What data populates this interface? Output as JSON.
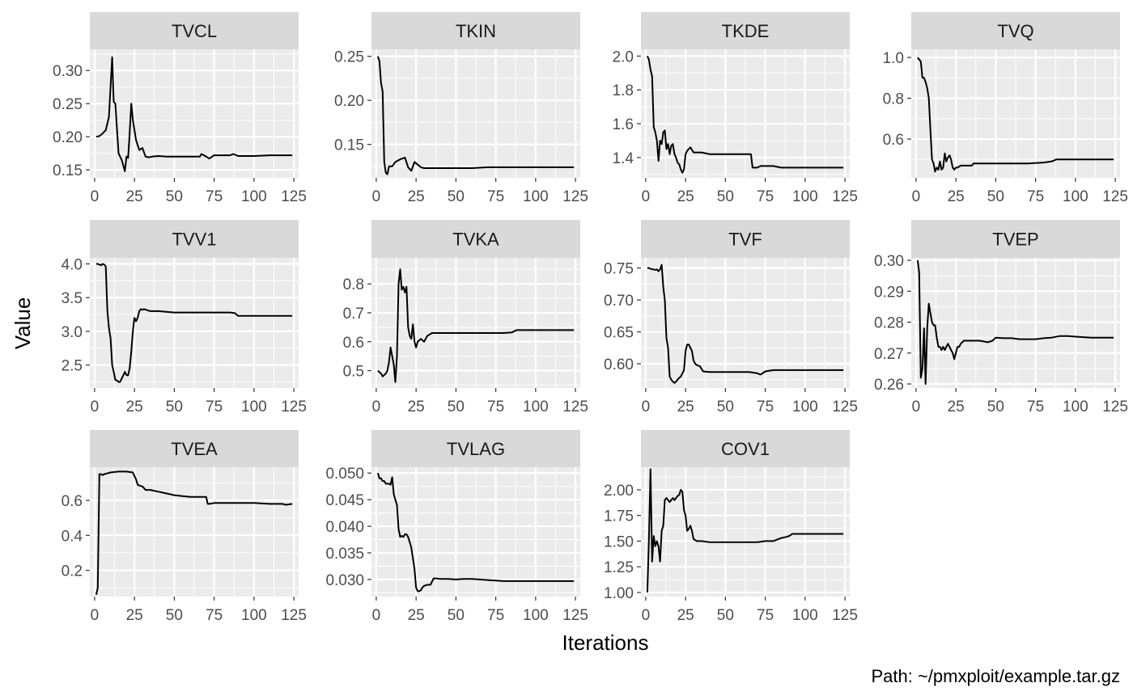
{
  "figure": {
    "ylabel": "Value",
    "xlabel": "Iterations",
    "caption": "Path: ~/pmxploit/example.tar.gz",
    "colors": {
      "panel_bg": "#ebebeb",
      "strip_bg": "#d9d9d9",
      "grid": "#ffffff",
      "line": "#000000",
      "tick_text": "#4d4d4d",
      "text": "#1a1a1a"
    }
  },
  "chart_data": [
    {
      "type": "line",
      "title": "TVCL",
      "xlim": [
        -3,
        128
      ],
      "ylim": [
        0.138,
        0.332
      ],
      "xticks": [
        0,
        25,
        50,
        75,
        100,
        125
      ],
      "yticks": [
        0.15,
        0.2,
        0.25,
        0.3
      ],
      "ytick_labels": [
        "0.15",
        "0.20",
        "0.25",
        "0.30"
      ],
      "x": [
        1,
        3,
        5,
        7,
        9,
        11,
        12,
        13,
        15,
        17,
        19,
        20,
        21,
        22,
        23,
        24,
        26,
        28,
        30,
        32,
        34,
        36,
        40,
        45,
        50,
        60,
        66,
        67,
        70,
        72,
        75,
        80,
        85,
        87,
        90,
        100,
        110,
        124
      ],
      "y": [
        0.2,
        0.201,
        0.205,
        0.21,
        0.23,
        0.32,
        0.253,
        0.25,
        0.175,
        0.165,
        0.148,
        0.17,
        0.168,
        0.205,
        0.25,
        0.225,
        0.195,
        0.18,
        0.183,
        0.17,
        0.169,
        0.17,
        0.171,
        0.17,
        0.17,
        0.17,
        0.17,
        0.174,
        0.17,
        0.167,
        0.172,
        0.172,
        0.172,
        0.174,
        0.171,
        0.171,
        0.172,
        0.172
      ]
    },
    {
      "type": "line",
      "title": "TKIN",
      "xlim": [
        -3,
        128
      ],
      "ylim": [
        0.112,
        0.258
      ],
      "xticks": [
        0,
        25,
        50,
        75,
        100,
        125
      ],
      "yticks": [
        0.15,
        0.2,
        0.25
      ],
      "ytick_labels": [
        "0.15",
        "0.20",
        "0.25"
      ],
      "x": [
        1,
        2,
        3,
        4,
        5,
        6,
        7,
        8,
        10,
        12,
        15,
        18,
        20,
        22,
        24,
        26,
        28,
        30,
        35,
        40,
        50,
        60,
        70,
        80,
        90,
        100,
        110,
        124
      ],
      "y": [
        0.25,
        0.245,
        0.22,
        0.21,
        0.13,
        0.118,
        0.116,
        0.125,
        0.125,
        0.13,
        0.133,
        0.135,
        0.124,
        0.12,
        0.13,
        0.127,
        0.124,
        0.123,
        0.123,
        0.123,
        0.123,
        0.123,
        0.124,
        0.124,
        0.124,
        0.124,
        0.124,
        0.124
      ]
    },
    {
      "type": "line",
      "title": "TKDE",
      "xlim": [
        -3,
        128
      ],
      "ylim": [
        1.28,
        2.04
      ],
      "xticks": [
        0,
        25,
        50,
        75,
        100,
        125
      ],
      "yticks": [
        1.4,
        1.6,
        1.8,
        2.0
      ],
      "ytick_labels": [
        "1.4",
        "1.6",
        "1.8",
        "2.0"
      ],
      "x": [
        1,
        2,
        3,
        4,
        5,
        6,
        7,
        8,
        9,
        10,
        11,
        12,
        13,
        14,
        15,
        16,
        17,
        18,
        19,
        20,
        21,
        22,
        23,
        24,
        25,
        26,
        28,
        30,
        32,
        35,
        40,
        50,
        60,
        66,
        67,
        70,
        72,
        75,
        80,
        85,
        90,
        100,
        110,
        124
      ],
      "y": [
        2.0,
        1.98,
        1.92,
        1.88,
        1.58,
        1.55,
        1.5,
        1.38,
        1.5,
        1.48,
        1.55,
        1.56,
        1.45,
        1.48,
        1.42,
        1.47,
        1.48,
        1.42,
        1.4,
        1.37,
        1.36,
        1.33,
        1.31,
        1.33,
        1.42,
        1.44,
        1.46,
        1.43,
        1.43,
        1.43,
        1.42,
        1.42,
        1.42,
        1.42,
        1.34,
        1.34,
        1.35,
        1.35,
        1.35,
        1.34,
        1.34,
        1.34,
        1.34,
        1.34
      ]
    },
    {
      "type": "line",
      "title": "TVQ",
      "xlim": [
        -3,
        128
      ],
      "ylim": [
        0.41,
        1.04
      ],
      "xticks": [
        0,
        25,
        50,
        75,
        100,
        125
      ],
      "yticks": [
        0.6,
        0.8,
        1.0
      ],
      "ytick_labels": [
        "0.6",
        "0.8",
        "1.0"
      ],
      "x": [
        1,
        2,
        3,
        4,
        5,
        6,
        7,
        8,
        9,
        10,
        11,
        12,
        13,
        14,
        15,
        16,
        17,
        18,
        19,
        20,
        21,
        22,
        23,
        24,
        25,
        26,
        28,
        30,
        32,
        35,
        36,
        40,
        50,
        60,
        70,
        80,
        85,
        88,
        90,
        100,
        110,
        124
      ],
      "y": [
        1.0,
        0.99,
        0.98,
        0.9,
        0.9,
        0.88,
        0.85,
        0.8,
        0.65,
        0.5,
        0.48,
        0.44,
        0.46,
        0.45,
        0.49,
        0.45,
        0.46,
        0.53,
        0.49,
        0.51,
        0.52,
        0.5,
        0.46,
        0.45,
        0.46,
        0.46,
        0.47,
        0.47,
        0.47,
        0.47,
        0.48,
        0.48,
        0.48,
        0.48,
        0.48,
        0.485,
        0.49,
        0.5,
        0.5,
        0.5,
        0.5,
        0.5
      ]
    },
    {
      "type": "line",
      "title": "TVV1",
      "xlim": [
        -3,
        128
      ],
      "ylim": [
        2.16,
        4.09
      ],
      "xticks": [
        0,
        25,
        50,
        75,
        100,
        125
      ],
      "yticks": [
        2.5,
        3.0,
        3.5,
        4.0
      ],
      "ytick_labels": [
        "2.5",
        "3.0",
        "3.5",
        "4.0"
      ],
      "x": [
        1,
        2,
        3,
        4,
        5,
        6,
        7,
        8,
        9,
        10,
        11,
        12,
        13,
        14,
        15,
        16,
        17,
        18,
        19,
        20,
        21,
        22,
        23,
        24,
        25,
        26,
        27,
        28,
        29,
        30,
        31,
        35,
        40,
        45,
        50,
        60,
        70,
        80,
        85,
        88,
        90,
        100,
        110,
        124
      ],
      "y": [
        4.0,
        4.0,
        3.99,
        3.98,
        4.0,
        3.99,
        3.96,
        3.3,
        3.05,
        2.9,
        2.5,
        2.4,
        2.28,
        2.27,
        2.25,
        2.25,
        2.3,
        2.35,
        2.4,
        2.35,
        2.35,
        2.45,
        2.7,
        3.0,
        3.2,
        3.15,
        3.2,
        3.3,
        3.33,
        3.32,
        3.33,
        3.3,
        3.3,
        3.29,
        3.28,
        3.28,
        3.28,
        3.28,
        3.28,
        3.27,
        3.23,
        3.23,
        3.23,
        3.23
      ]
    },
    {
      "type": "line",
      "title": "TVKA",
      "xlim": [
        -3,
        128
      ],
      "ylim": [
        0.44,
        0.89
      ],
      "xticks": [
        0,
        25,
        50,
        75,
        100,
        125
      ],
      "yticks": [
        0.5,
        0.6,
        0.7,
        0.8
      ],
      "ytick_labels": [
        "0.5",
        "0.6",
        "0.7",
        "0.8"
      ],
      "x": [
        1,
        2,
        3,
        4,
        5,
        6,
        7,
        8,
        9,
        10,
        11,
        12,
        13,
        14,
        15,
        16,
        17,
        18,
        19,
        20,
        21,
        22,
        23,
        24,
        25,
        26,
        28,
        30,
        32,
        35,
        40,
        50,
        60,
        70,
        80,
        85,
        88,
        90,
        100,
        110,
        124
      ],
      "y": [
        0.5,
        0.495,
        0.49,
        0.48,
        0.485,
        0.49,
        0.5,
        0.53,
        0.58,
        0.55,
        0.52,
        0.46,
        0.55,
        0.8,
        0.85,
        0.78,
        0.79,
        0.77,
        0.79,
        0.65,
        0.62,
        0.61,
        0.66,
        0.6,
        0.58,
        0.6,
        0.61,
        0.6,
        0.62,
        0.63,
        0.63,
        0.63,
        0.63,
        0.63,
        0.63,
        0.632,
        0.64,
        0.64,
        0.64,
        0.64,
        0.64
      ]
    },
    {
      "type": "line",
      "title": "TVF",
      "xlim": [
        -3,
        128
      ],
      "ylim": [
        0.562,
        0.766
      ],
      "xticks": [
        0,
        25,
        50,
        75,
        100,
        125
      ],
      "yticks": [
        0.6,
        0.65,
        0.7,
        0.75
      ],
      "ytick_labels": [
        "0.60",
        "0.65",
        "0.70",
        "0.75"
      ],
      "x": [
        1,
        2,
        3,
        4,
        5,
        6,
        7,
        8,
        9,
        10,
        11,
        12,
        13,
        14,
        15,
        16,
        17,
        18,
        19,
        20,
        21,
        22,
        23,
        24,
        25,
        26,
        27,
        28,
        29,
        30,
        31,
        32,
        34,
        36,
        40,
        50,
        60,
        65,
        70,
        72,
        75,
        80,
        90,
        100,
        110,
        124
      ],
      "y": [
        0.75,
        0.75,
        0.749,
        0.748,
        0.748,
        0.747,
        0.748,
        0.745,
        0.748,
        0.755,
        0.72,
        0.7,
        0.64,
        0.625,
        0.58,
        0.575,
        0.572,
        0.57,
        0.572,
        0.575,
        0.578,
        0.58,
        0.585,
        0.59,
        0.62,
        0.63,
        0.63,
        0.625,
        0.62,
        0.605,
        0.6,
        0.598,
        0.596,
        0.588,
        0.587,
        0.587,
        0.587,
        0.587,
        0.585,
        0.583,
        0.588,
        0.59,
        0.59,
        0.59,
        0.59,
        0.59
      ]
    },
    {
      "type": "line",
      "title": "TVEP",
      "xlim": [
        -3,
        128
      ],
      "ylim": [
        0.2587,
        0.3008
      ],
      "xticks": [
        0,
        25,
        50,
        75,
        100,
        125
      ],
      "yticks": [
        0.26,
        0.27,
        0.28,
        0.29,
        0.3
      ],
      "ytick_labels": [
        "0.26",
        "0.27",
        "0.28",
        "0.29",
        "0.30"
      ],
      "x": [
        1,
        2,
        3,
        4,
        5,
        6,
        7,
        8,
        9,
        10,
        11,
        12,
        13,
        14,
        15,
        16,
        17,
        18,
        19,
        20,
        21,
        22,
        23,
        24,
        25,
        26,
        27,
        28,
        30,
        32,
        35,
        40,
        45,
        48,
        50,
        55,
        60,
        65,
        70,
        75,
        80,
        85,
        90,
        95,
        100,
        110,
        124
      ],
      "y": [
        0.3,
        0.296,
        0.262,
        0.265,
        0.278,
        0.26,
        0.278,
        0.286,
        0.283,
        0.28,
        0.279,
        0.279,
        0.275,
        0.272,
        0.272,
        0.271,
        0.272,
        0.271,
        0.272,
        0.273,
        0.272,
        0.271,
        0.27,
        0.268,
        0.27,
        0.272,
        0.272,
        0.273,
        0.274,
        0.274,
        0.274,
        0.274,
        0.2735,
        0.274,
        0.275,
        0.2748,
        0.2748,
        0.2745,
        0.2745,
        0.2745,
        0.2748,
        0.275,
        0.2755,
        0.2755,
        0.2753,
        0.275,
        0.275
      ]
    },
    {
      "type": "line",
      "title": "TVEA",
      "xlim": [
        -3,
        128
      ],
      "ylim": [
        0.05,
        0.79
      ],
      "xticks": [
        0,
        25,
        50,
        75,
        100,
        125
      ],
      "yticks": [
        0.2,
        0.4,
        0.6
      ],
      "ytick_labels": [
        "0.2",
        "0.4",
        "0.6"
      ],
      "x": [
        1,
        2,
        3,
        4,
        5,
        6,
        8,
        10,
        15,
        20,
        24,
        25,
        26,
        27,
        28,
        30,
        32,
        35,
        40,
        45,
        50,
        55,
        60,
        65,
        70,
        71,
        72,
        75,
        80,
        85,
        90,
        100,
        110,
        115,
        118,
        120,
        124
      ],
      "y": [
        0.06,
        0.1,
        0.75,
        0.75,
        0.745,
        0.75,
        0.755,
        0.76,
        0.765,
        0.765,
        0.76,
        0.74,
        0.72,
        0.69,
        0.685,
        0.68,
        0.66,
        0.66,
        0.65,
        0.64,
        0.63,
        0.625,
        0.62,
        0.62,
        0.62,
        0.58,
        0.58,
        0.585,
        0.585,
        0.585,
        0.585,
        0.585,
        0.58,
        0.58,
        0.58,
        0.575,
        0.58
      ]
    },
    {
      "type": "line",
      "title": "TVLAG",
      "xlim": [
        -3,
        128
      ],
      "ylim": [
        0.0268,
        0.0511
      ],
      "xticks": [
        0,
        25,
        50,
        75,
        100,
        125
      ],
      "yticks": [
        0.03,
        0.035,
        0.04,
        0.045,
        0.05
      ],
      "ytick_labels": [
        "0.030",
        "0.035",
        "0.040",
        "0.045",
        "0.050"
      ],
      "x": [
        1,
        2,
        3,
        4,
        5,
        6,
        7,
        8,
        9,
        10,
        11,
        12,
        13,
        14,
        15,
        16,
        17,
        18,
        19,
        20,
        21,
        22,
        23,
        24,
        25,
        26,
        27,
        28,
        29,
        30,
        32,
        34,
        36,
        38,
        40,
        45,
        50,
        55,
        60,
        65,
        70,
        75,
        80,
        90,
        100,
        110,
        124
      ],
      "y": [
        0.05,
        0.049,
        0.049,
        0.0485,
        0.0485,
        0.048,
        0.048,
        0.048,
        0.0478,
        0.0492,
        0.046,
        0.045,
        0.044,
        0.0395,
        0.038,
        0.0382,
        0.038,
        0.0385,
        0.0385,
        0.038,
        0.037,
        0.036,
        0.034,
        0.032,
        0.0285,
        0.0278,
        0.0278,
        0.028,
        0.0285,
        0.0288,
        0.029,
        0.029,
        0.0302,
        0.0302,
        0.0301,
        0.0301,
        0.03,
        0.0301,
        0.0301,
        0.03,
        0.0299,
        0.0298,
        0.0297,
        0.0297,
        0.0297,
        0.0297,
        0.0297
      ]
    },
    {
      "type": "line",
      "title": "COV1",
      "xlim": [
        -3,
        128
      ],
      "ylim": [
        0.96,
        2.22
      ],
      "xticks": [
        0,
        25,
        50,
        75,
        100,
        125
      ],
      "yticks": [
        1.0,
        1.25,
        1.5,
        1.75,
        2.0
      ],
      "ytick_labels": [
        "1.00",
        "1.25",
        "1.50",
        "1.75",
        "2.00"
      ],
      "x": [
        1,
        2,
        3,
        4,
        5,
        6,
        7,
        8,
        9,
        10,
        11,
        12,
        13,
        14,
        15,
        16,
        17,
        18,
        19,
        20,
        21,
        22,
        23,
        24,
        25,
        26,
        27,
        28,
        29,
        30,
        32,
        35,
        40,
        50,
        60,
        70,
        75,
        80,
        85,
        88,
        90,
        92,
        100,
        110,
        124
      ],
      "y": [
        1.0,
        1.5,
        2.2,
        1.3,
        1.55,
        1.45,
        1.5,
        1.45,
        1.3,
        1.6,
        1.65,
        1.9,
        1.92,
        1.9,
        1.88,
        1.9,
        1.92,
        1.9,
        1.92,
        1.94,
        1.95,
        2.0,
        1.98,
        1.8,
        1.75,
        1.6,
        1.62,
        1.65,
        1.6,
        1.52,
        1.5,
        1.5,
        1.49,
        1.49,
        1.49,
        1.49,
        1.5,
        1.5,
        1.53,
        1.54,
        1.55,
        1.57,
        1.57,
        1.57,
        1.57
      ]
    }
  ]
}
